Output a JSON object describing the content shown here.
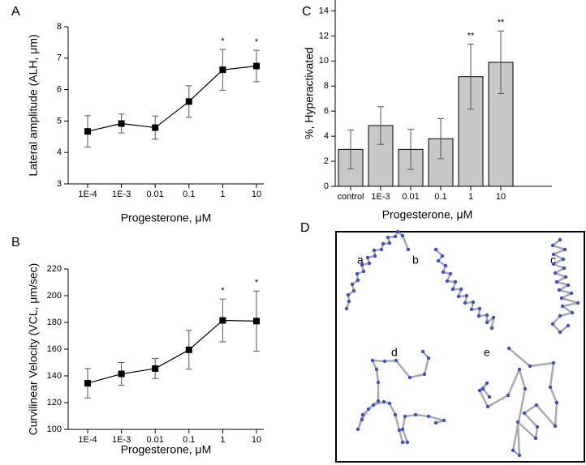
{
  "chart_data": [
    {
      "type": "line",
      "panel": "A",
      "ylabel": "Lateral amplitude   (ALH, μm)",
      "xlabel": "Progesterone, μM",
      "categories": [
        "1E-4",
        "1E-3",
        "0.01",
        "0.1",
        "1",
        "10"
      ],
      "values": [
        4.67,
        4.92,
        4.79,
        5.62,
        6.63,
        6.75
      ],
      "errors": [
        0.5,
        0.3,
        0.37,
        0.5,
        0.65,
        0.5
      ],
      "significance": [
        null,
        null,
        null,
        null,
        "*",
        "*"
      ],
      "color": "#000000",
      "ylim": [
        3,
        8
      ],
      "yticks": [
        3,
        4,
        5,
        6,
        7,
        8
      ]
    },
    {
      "type": "line",
      "panel": "B",
      "ylabel": "Curvilinear Velocity  (VCL, μm/sec)",
      "xlabel": "Progesterone, μM",
      "categories": [
        "1E-4",
        "1E-3",
        "0.01",
        "0.1",
        "1",
        "10"
      ],
      "values": [
        134.5,
        141.5,
        145.5,
        159.5,
        181.5,
        181
      ],
      "errors": [
        11,
        8.5,
        7.5,
        14.5,
        16,
        22.5
      ],
      "significance": [
        null,
        null,
        null,
        null,
        "*",
        "*"
      ],
      "color": "#000000",
      "ylim": [
        100,
        220
      ],
      "yticks": [
        100,
        120,
        140,
        160,
        180,
        200,
        220
      ]
    },
    {
      "type": "bar",
      "panel": "C",
      "ylabel": "%, Hyperactivated",
      "xlabel": "Progesterone, μM",
      "categories": [
        "control",
        "1E-3",
        "0.01",
        "0.1",
        "1",
        "10"
      ],
      "values": [
        2.95,
        4.85,
        2.95,
        3.8,
        8.75,
        9.9
      ],
      "errors": [
        1.55,
        1.5,
        1.6,
        1.6,
        2.6,
        2.5
      ],
      "significance": [
        null,
        null,
        null,
        null,
        "**",
        "**"
      ],
      "color": "#c8c8c8",
      "ylim": [
        0,
        15
      ],
      "yticks": [
        0,
        2,
        4,
        6,
        8,
        10,
        12,
        14
      ]
    }
  ],
  "panel_d": {
    "label": "D",
    "tracks": [
      "a",
      "b",
      "c",
      "d",
      "e"
    ]
  }
}
